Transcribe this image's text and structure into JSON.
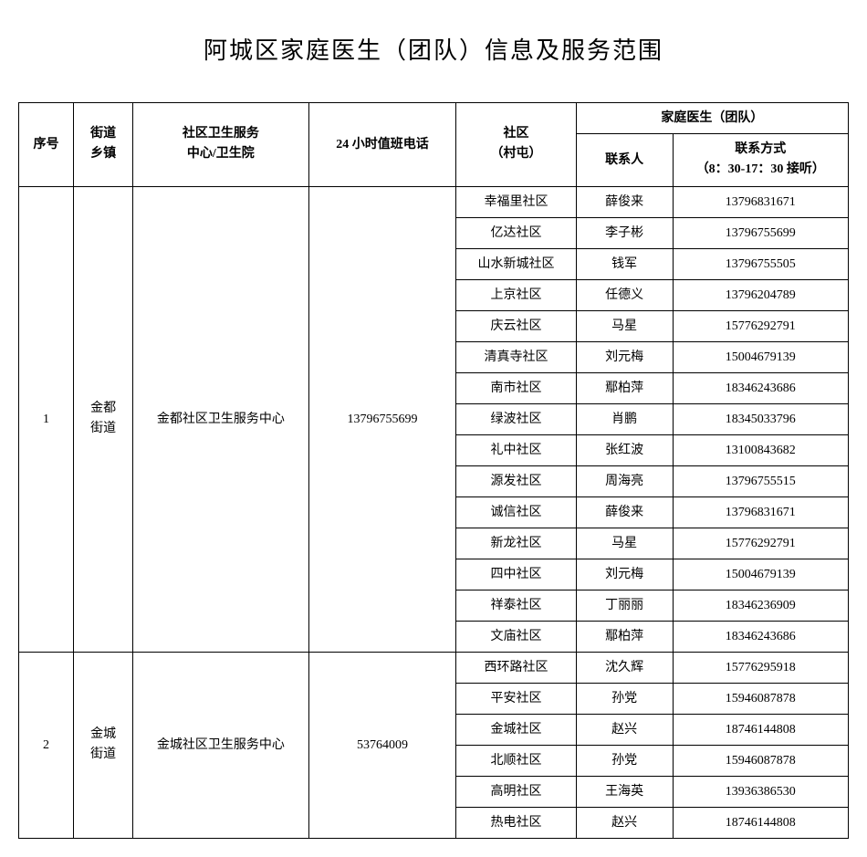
{
  "title": "阿城区家庭医生（团队）信息及服务范围",
  "headers": {
    "seq": "序号",
    "town_l1": "街道",
    "town_l2": "乡镇",
    "center_l1": "社区卫生服务",
    "center_l2": "中心/卫生院",
    "phone24": "24 小时值班电话",
    "community_l1": "社区",
    "community_l2": "（村屯）",
    "doctor_group": "家庭医生（团队）",
    "contact": "联系人",
    "phone_l1": "联系方式",
    "phone_l2": "（8：30-17：30 接听）"
  },
  "groups": [
    {
      "seq": "1",
      "town_l1": "金都",
      "town_l2": "街道",
      "center": "金都社区卫生服务中心",
      "phone24": "13796755699",
      "rows": [
        {
          "community": "幸福里社区",
          "contact": "薛俊来",
          "phone": "13796831671"
        },
        {
          "community": "亿达社区",
          "contact": "李子彬",
          "phone": "13796755699"
        },
        {
          "community": "山水新城社区",
          "contact": "钱军",
          "phone": "13796755505"
        },
        {
          "community": "上京社区",
          "contact": "任德义",
          "phone": "13796204789"
        },
        {
          "community": "庆云社区",
          "contact": "马星",
          "phone": "15776292791"
        },
        {
          "community": "清真寺社区",
          "contact": "刘元梅",
          "phone": "15004679139"
        },
        {
          "community": "南市社区",
          "contact": "鄢柏萍",
          "phone": "18346243686"
        },
        {
          "community": "绿波社区",
          "contact": "肖鹏",
          "phone": "18345033796"
        },
        {
          "community": "礼中社区",
          "contact": "张红波",
          "phone": "13100843682"
        },
        {
          "community": "源发社区",
          "contact": "周海亮",
          "phone": "13796755515"
        },
        {
          "community": "诚信社区",
          "contact": "薛俊来",
          "phone": "13796831671"
        },
        {
          "community": "新龙社区",
          "contact": "马星",
          "phone": "15776292791"
        },
        {
          "community": "四中社区",
          "contact": "刘元梅",
          "phone": "15004679139"
        },
        {
          "community": "祥泰社区",
          "contact": "丁丽丽",
          "phone": "18346236909"
        },
        {
          "community": "文庙社区",
          "contact": "鄢柏萍",
          "phone": "18346243686"
        }
      ]
    },
    {
      "seq": "2",
      "town_l1": "金城",
      "town_l2": "街道",
      "center": "金城社区卫生服务中心",
      "phone24": "53764009",
      "rows": [
        {
          "community": "西环路社区",
          "contact": "沈久辉",
          "phone": "15776295918"
        },
        {
          "community": "平安社区",
          "contact": "孙党",
          "phone": "15946087878"
        },
        {
          "community": "金城社区",
          "contact": "赵兴",
          "phone": "18746144808"
        },
        {
          "community": "北顺社区",
          "contact": "孙党",
          "phone": "15946087878"
        },
        {
          "community": "高明社区",
          "contact": "王海英",
          "phone": "13936386530"
        },
        {
          "community": "热电社区",
          "contact": "赵兴",
          "phone": "18746144808"
        }
      ]
    }
  ]
}
